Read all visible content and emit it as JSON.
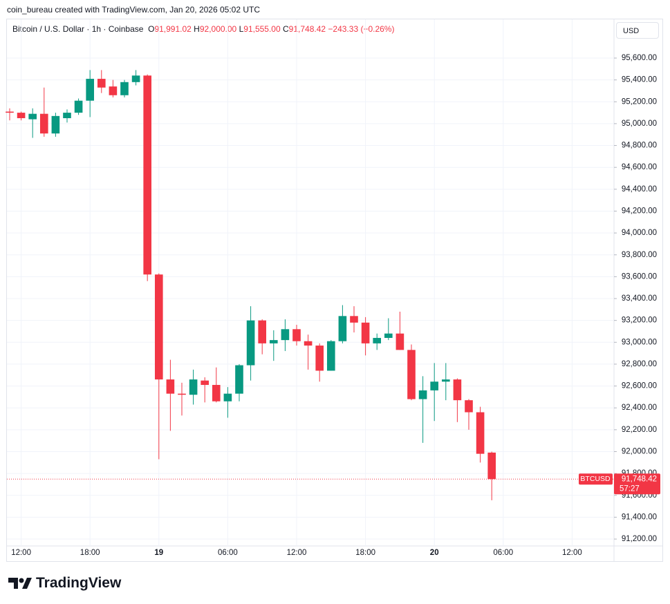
{
  "header": {
    "credit": "coin_bureau created with TradingView.com, Jan 20, 2026 05:02 UTC",
    "symbol": "Bitcoin / U.S. Dollar · 1h · Coinbase",
    "o_label": "O",
    "o_value": "91,991.02",
    "h_label": "H",
    "h_value": "92,000.00",
    "l_label": "L",
    "l_value": "91,555.00",
    "c_label": "C",
    "c_value": "91,748.42",
    "change": "−243.33 (−0.26%)",
    "currency": "USD"
  },
  "price_tag": {
    "ticker": "BTCUSD",
    "price": "91,748.42",
    "countdown": "57:27"
  },
  "logo": "TradingView",
  "chart_data": {
    "type": "candlestick",
    "up_color": "#089981",
    "down_color": "#f23645",
    "grid": true,
    "xlim": [
      -0.24,
      52.65
    ],
    "xticks": [
      {
        "value": 1,
        "label": "12:00"
      },
      {
        "value": 7,
        "label": "18:00"
      },
      {
        "value": 13,
        "label": "19"
      },
      {
        "value": 19,
        "label": "06:00"
      },
      {
        "value": 25,
        "label": "12:00"
      },
      {
        "value": 31,
        "label": "18:00"
      },
      {
        "value": 37,
        "label": "20"
      },
      {
        "value": 43,
        "label": "06:00"
      },
      {
        "value": 49,
        "label": "12:00"
      }
    ],
    "ylim": [
      91137,
      95954
    ],
    "yticks": [
      {
        "value": 91200,
        "label": "91,200.00"
      },
      {
        "value": 91400,
        "label": "91,400.00"
      },
      {
        "value": 91600,
        "label": "91,600.00"
      },
      {
        "value": 91800,
        "label": "91,800.00"
      },
      {
        "value": 92000,
        "label": "92,000.00"
      },
      {
        "value": 92200,
        "label": "92,200.00"
      },
      {
        "value": 92400,
        "label": "92,400.00"
      },
      {
        "value": 92600,
        "label": "92,600.00"
      },
      {
        "value": 92800,
        "label": "92,800.00"
      },
      {
        "value": 93000,
        "label": "93,000.00"
      },
      {
        "value": 93200,
        "label": "93,200.00"
      },
      {
        "value": 93400,
        "label": "93,400.00"
      },
      {
        "value": 93600,
        "label": "93,600.00"
      },
      {
        "value": 93800,
        "label": "93,800.00"
      },
      {
        "value": 94000,
        "label": "94,000.00"
      },
      {
        "value": 94200,
        "label": "94,200.00"
      },
      {
        "value": 94400,
        "label": "94,400.00"
      },
      {
        "value": 94600,
        "label": "94,600.00"
      },
      {
        "value": 94800,
        "label": "94,800.00"
      },
      {
        "value": 95000,
        "label": "95,000.00"
      },
      {
        "value": 95200,
        "label": "95,200.00"
      },
      {
        "value": 95400,
        "label": "95,400.00"
      },
      {
        "value": 95600,
        "label": "95,600.00"
      }
    ],
    "open": [
      95110,
      95100,
      95040,
      95090,
      94910,
      95050,
      95100,
      95210,
      95410,
      95340,
      95260,
      95380,
      95440,
      93620,
      92660,
      92530,
      92520,
      92650,
      92610,
      92460,
      92530,
      92790,
      93200,
      92990,
      93020,
      93120,
      93010,
      92970,
      92740,
      93010,
      93240,
      93180,
      92990,
      93040,
      93080,
      92930,
      92480,
      92560,
      92640,
      92660,
      92470,
      92360,
      91991.02
    ],
    "high": [
      95140,
      95110,
      95140,
      95330,
      95100,
      95130,
      95230,
      95490,
      95490,
      95400,
      95400,
      95490,
      95450,
      93630,
      92840,
      92630,
      92750,
      92680,
      92770,
      92590,
      92800,
      93330,
      93210,
      93110,
      93210,
      93160,
      93070,
      92990,
      93020,
      93340,
      93330,
      93230,
      93080,
      93220,
      93280,
      92980,
      92690,
      92810,
      92810,
      92670,
      92480,
      92410,
      92000
    ],
    "low": [
      95030,
      95030,
      94870,
      94880,
      94880,
      95010,
      95080,
      95060,
      95280,
      95240,
      95240,
      95350,
      93560,
      91930,
      92190,
      92330,
      92430,
      92450,
      92450,
      92310,
      92460,
      92650,
      92890,
      92830,
      92920,
      92970,
      92750,
      92640,
      92740,
      92990,
      93090,
      92880,
      92930,
      93020,
      92930,
      92470,
      92080,
      92280,
      92470,
      92270,
      92200,
      91900,
      91555
    ],
    "close": [
      95100,
      95050,
      95090,
      94910,
      95070,
      95100,
      95210,
      95410,
      95330,
      95260,
      95380,
      95440,
      93620,
      92660,
      92530,
      92520,
      92660,
      92610,
      92460,
      92530,
      92790,
      93200,
      92990,
      93020,
      93120,
      93010,
      92970,
      92740,
      93010,
      93240,
      93180,
      92990,
      93040,
      93080,
      92930,
      92480,
      92560,
      92640,
      92660,
      92470,
      92360,
      91980,
      91748.42
    ]
  }
}
